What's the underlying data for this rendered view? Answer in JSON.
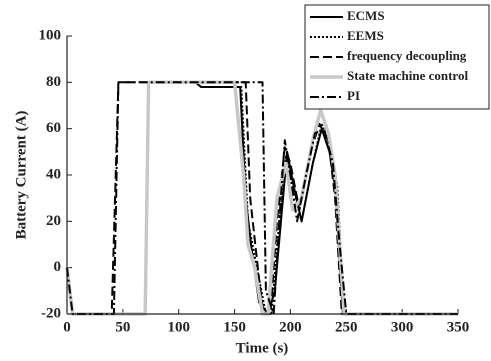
{
  "chart_data": {
    "type": "line",
    "xlabel": "Time (s)",
    "ylabel": "Battery Current (A)",
    "xlim": [
      0,
      350
    ],
    "xticks": [
      0,
      50,
      100,
      150,
      200,
      250,
      300,
      350
    ],
    "ylim": [
      -20,
      100
    ],
    "yticks": [
      -20,
      0,
      20,
      40,
      60,
      80,
      100
    ],
    "legend": "upper right",
    "series": [
      {
        "name": "ECMS",
        "color": "#000000",
        "linestyle": "solid",
        "linewidth": 2,
        "x": [
          0,
          5,
          70,
          73,
          115,
          120,
          155,
          160,
          165,
          172,
          180,
          186,
          197,
          203,
          210,
          220,
          228,
          235,
          240,
          247,
          350
        ],
        "values": [
          0,
          -20,
          -20,
          80,
          80,
          78,
          78,
          30,
          9,
          -15,
          -20,
          -10,
          50,
          35,
          20,
          45,
          60,
          50,
          35,
          -20,
          -20
        ]
      },
      {
        "name": "EEMS",
        "color": "#000000",
        "linestyle": "dotted",
        "linewidth": 2,
        "x": [
          0,
          5,
          70,
          73,
          115,
          120,
          156,
          162,
          170,
          178,
          183,
          190,
          196,
          202,
          210,
          220,
          228,
          236,
          242,
          248,
          350
        ],
        "values": [
          0,
          -20,
          -20,
          80,
          80,
          78,
          78,
          20,
          0,
          -20,
          -20,
          20,
          48,
          35,
          20,
          45,
          62,
          52,
          35,
          -20,
          -20
        ]
      },
      {
        "name": "frequency decoupling",
        "color": "#000000",
        "linestyle": "dashed",
        "linewidth": 2,
        "x": [
          0,
          5,
          40,
          46,
          160,
          164,
          172,
          176,
          182,
          188,
          195,
          200,
          208,
          218,
          226,
          234,
          240,
          246,
          350
        ],
        "values": [
          0,
          -20,
          -20,
          80,
          80,
          30,
          -5,
          -20,
          -20,
          20,
          52,
          45,
          25,
          50,
          62,
          55,
          30,
          -20,
          -20
        ]
      },
      {
        "name": "State machine control",
        "color": "#c8c8c8",
        "linestyle": "solid",
        "linewidth": 3.5,
        "x": [
          0,
          5,
          70,
          73,
          115,
          120,
          150,
          158,
          162,
          168,
          175,
          180,
          188,
          196,
          202,
          210,
          220,
          227,
          234,
          240,
          248,
          350
        ],
        "values": [
          0,
          -20,
          -20,
          80,
          80,
          80,
          80,
          40,
          10,
          0,
          -20,
          -20,
          30,
          45,
          25,
          30,
          55,
          68,
          58,
          40,
          -20,
          -20
        ]
      },
      {
        "name": "PI",
        "color": "#000000",
        "linestyle": "dashdot",
        "linewidth": 2,
        "x": [
          0,
          5,
          42,
          46,
          175,
          178,
          185,
          190,
          195,
          200,
          206,
          214,
          222,
          230,
          238,
          244,
          250,
          350
        ],
        "values": [
          0,
          -20,
          -20,
          80,
          80,
          -10,
          -20,
          20,
          55,
          40,
          20,
          40,
          58,
          60,
          45,
          10,
          -20,
          -20
        ]
      }
    ]
  }
}
